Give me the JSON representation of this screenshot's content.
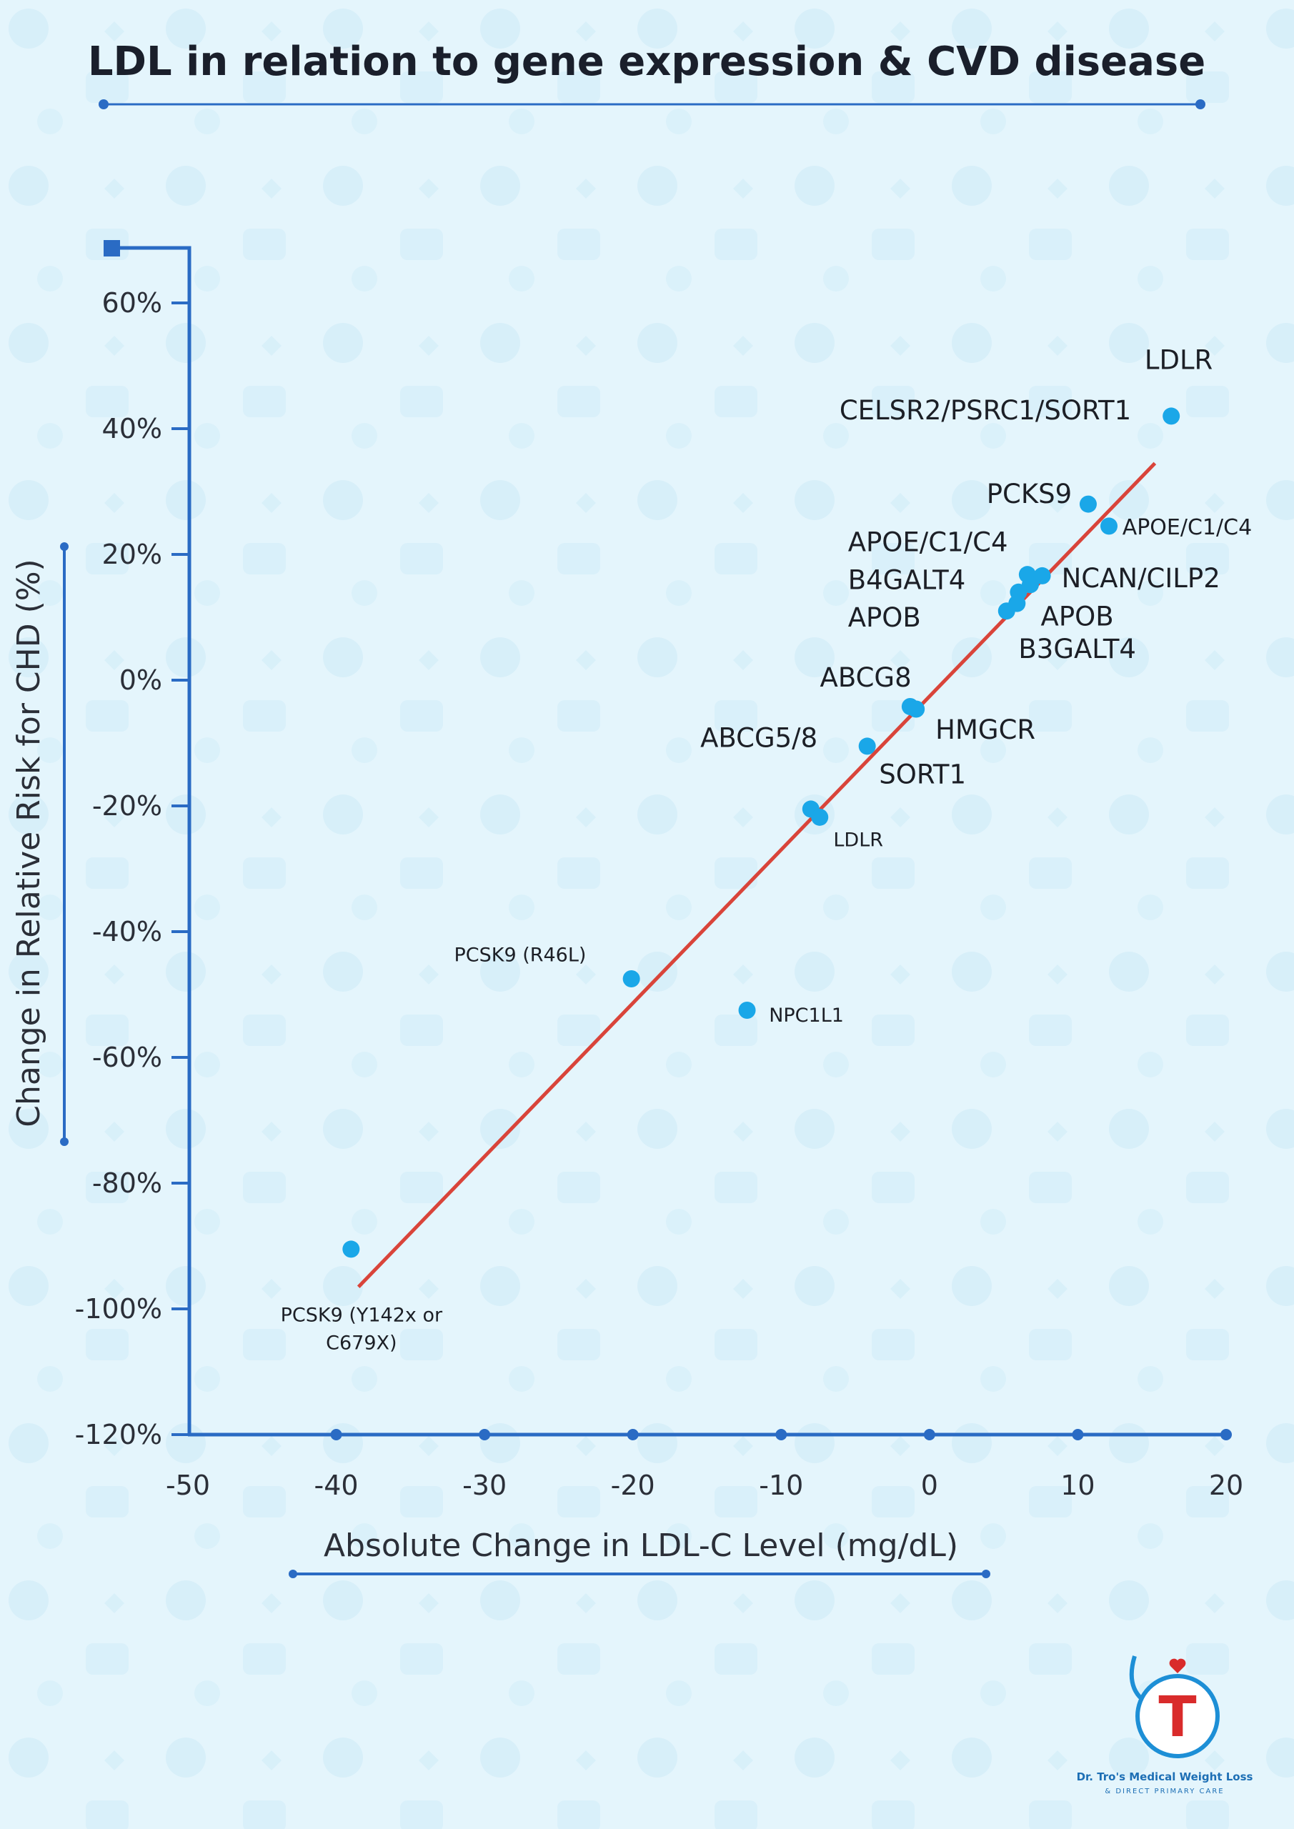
{
  "page": {
    "background": "#e4f5fc",
    "accent_color": "#2a6bc4",
    "point_color": "#1aa7e8",
    "trend_color": "#d9443a"
  },
  "brand": {
    "name": "Dr. Tro's Medical Weight Loss",
    "tagline": "& DIRECT PRIMARY CARE",
    "logo_icon": "stethoscope-heart-t-icon"
  },
  "chart_data": {
    "type": "scatter",
    "title": "LDL in relation to gene expression & CVD disease",
    "xlabel": "Absolute Change in LDL-C Level (mg/dL)",
    "ylabel": "Change in Relative Risk for CHD (%)",
    "xlim": [
      -50,
      20
    ],
    "ylim": [
      -120,
      60
    ],
    "x_ticks": [
      {
        "value": -50,
        "label": "-50"
      },
      {
        "value": -40,
        "label": "-40"
      },
      {
        "value": -30,
        "label": "-30"
      },
      {
        "value": -20,
        "label": "-20"
      },
      {
        "value": -10,
        "label": "-10"
      },
      {
        "value": 0,
        "label": "0"
      },
      {
        "value": 10,
        "label": "10"
      },
      {
        "value": 20,
        "label": "20"
      }
    ],
    "y_ticks": [
      {
        "value": 60,
        "label": "60%"
      },
      {
        "value": 40,
        "label": "40%"
      },
      {
        "value": 20,
        "label": "20%"
      },
      {
        "value": 0,
        "label": "0%"
      },
      {
        "value": -20,
        "label": "-20%"
      },
      {
        "value": -40,
        "label": "-40%"
      },
      {
        "value": -60,
        "label": "-60%"
      },
      {
        "value": -80,
        "label": "-80%"
      },
      {
        "value": -100,
        "label": "-100%"
      },
      {
        "value": -120,
        "label": "-120%"
      }
    ],
    "grid": false,
    "points": [
      {
        "x": 16.3,
        "y": 42
      },
      {
        "x": 10.7,
        "y": 28
      },
      {
        "x": 12.1,
        "y": 24.5
      },
      {
        "x": 6.6,
        "y": 16.8
      },
      {
        "x": 7.6,
        "y": 16.6
      },
      {
        "x": 6.8,
        "y": 15.2
      },
      {
        "x": 6.0,
        "y": 14.0
      },
      {
        "x": 5.9,
        "y": 12.2
      },
      {
        "x": 5.2,
        "y": 11.0
      },
      {
        "x": -1.3,
        "y": -4.2
      },
      {
        "x": -0.9,
        "y": -4.6
      },
      {
        "x": -4.2,
        "y": -10.5
      },
      {
        "x": -8.0,
        "y": -20.5
      },
      {
        "x": -7.4,
        "y": -21.8
      },
      {
        "x": -20.1,
        "y": -47.5
      },
      {
        "x": -12.3,
        "y": -52.5
      },
      {
        "x": -39.0,
        "y": -90.5
      }
    ],
    "trendline": {
      "start": [
        -38.5,
        -96.5
      ],
      "end": [
        15.2,
        34.5
      ]
    },
    "labels": [
      {
        "text": "LDLR",
        "x": 16.8,
        "y": 49.5,
        "anchor": "middle",
        "size": "large"
      },
      {
        "text": "CELSR2/PSRC1/SORT1",
        "x": 13.6,
        "y": 41.5,
        "anchor": "end",
        "size": "large"
      },
      {
        "text": "PCKS9",
        "x": 9.6,
        "y": 28.2,
        "anchor": "end",
        "size": "large"
      },
      {
        "text": "APOE/C1/C4",
        "x": 13.0,
        "y": 23.2,
        "anchor": "start",
        "size": "medium"
      },
      {
        "text": "APOE/C1/C4",
        "x": -5.5,
        "y": 20.5,
        "anchor": "start",
        "size": "large"
      },
      {
        "text": "B4GALT4",
        "x": -5.5,
        "y": 14.5,
        "anchor": "start",
        "size": "large"
      },
      {
        "text": "NCAN/CILP2",
        "x": 8.9,
        "y": 14.8,
        "anchor": "start",
        "size": "large"
      },
      {
        "text": "APOB",
        "x": -5.5,
        "y": 8.5,
        "anchor": "start",
        "size": "large"
      },
      {
        "text": "APOB",
        "x": 7.5,
        "y": 8.7,
        "anchor": "start",
        "size": "large"
      },
      {
        "text": "B3GALT4",
        "x": 6.0,
        "y": 3.5,
        "anchor": "start",
        "size": "large"
      },
      {
        "text": "ABCG8",
        "x": -4.3,
        "y": -1.0,
        "anchor": "middle",
        "size": "large"
      },
      {
        "text": "HMGCR",
        "x": 0.4,
        "y": -9.3,
        "anchor": "start",
        "size": "large"
      },
      {
        "text": "ABCG5/8",
        "x": -11.5,
        "y": -10.6,
        "anchor": "middle",
        "size": "large"
      },
      {
        "text": "SORT1",
        "x": -3.4,
        "y": -16.4,
        "anchor": "start",
        "size": "large"
      },
      {
        "text": "LDLR",
        "x": -4.8,
        "y": -26.4,
        "anchor": "middle",
        "size": "small"
      },
      {
        "text": "PCSK9 (R46L)",
        "x": -27.6,
        "y": -44.7,
        "anchor": "middle",
        "size": "small"
      },
      {
        "text": "NPC1L1",
        "x": -8.3,
        "y": -54.3,
        "anchor": "middle",
        "size": "small"
      },
      {
        "text": "PCSK9 (Y142x or",
        "x": -38.3,
        "y": -102.0,
        "anchor": "middle",
        "size": "small"
      },
      {
        "text": "C679X)",
        "x": -38.3,
        "y": -106.4,
        "anchor": "middle",
        "size": "small"
      }
    ]
  }
}
